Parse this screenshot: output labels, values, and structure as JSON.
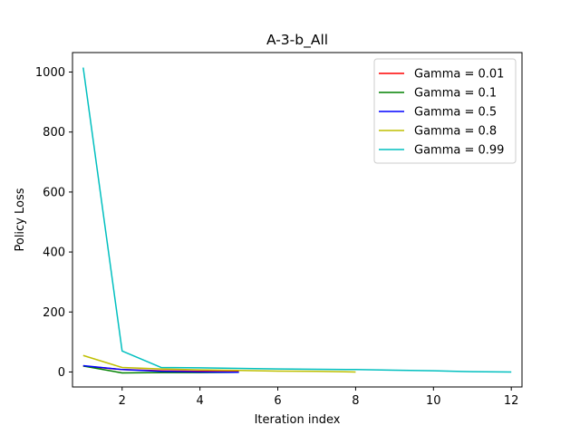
{
  "chart_data": {
    "type": "line",
    "title": "A-3-b_All",
    "xlabel": "Iteration index",
    "ylabel": "Policy Loss",
    "xlim": [
      0.725,
      12.275
    ],
    "ylim": [
      -50,
      1065
    ],
    "xticks": [
      2,
      4,
      6,
      8,
      10,
      12
    ],
    "yticks": [
      0,
      200,
      400,
      600,
      800,
      1000
    ],
    "grid": false,
    "legend_position": "top-right",
    "series": [
      {
        "name": "Gamma = 0.01",
        "color": "#ff0000",
        "x": [
          1,
          2,
          3,
          4,
          5
        ],
        "y": [
          20,
          8,
          4,
          2,
          1
        ]
      },
      {
        "name": "Gamma = 0.1",
        "color": "#008000",
        "x": [
          1,
          2,
          3,
          4,
          5
        ],
        "y": [
          20,
          -3,
          -2,
          -2,
          -1
        ]
      },
      {
        "name": "Gamma = 0.5",
        "color": "#0000ff",
        "x": [
          1,
          2,
          3,
          4,
          5
        ],
        "y": [
          21,
          8,
          2,
          0,
          -1
        ]
      },
      {
        "name": "Gamma = 0.8",
        "color": "#bfbf00",
        "x": [
          1,
          2,
          3,
          4,
          5,
          6,
          7,
          8
        ],
        "y": [
          55,
          15,
          10,
          7,
          5,
          3,
          2,
          0
        ]
      },
      {
        "name": "Gamma = 0.99",
        "color": "#00bfbf",
        "x": [
          1,
          2,
          3,
          4,
          5,
          6,
          7,
          8,
          9,
          10,
          11,
          12
        ],
        "y": [
          1015,
          70,
          15,
          14,
          12,
          10,
          9,
          8,
          6,
          4,
          1,
          0
        ]
      }
    ]
  }
}
